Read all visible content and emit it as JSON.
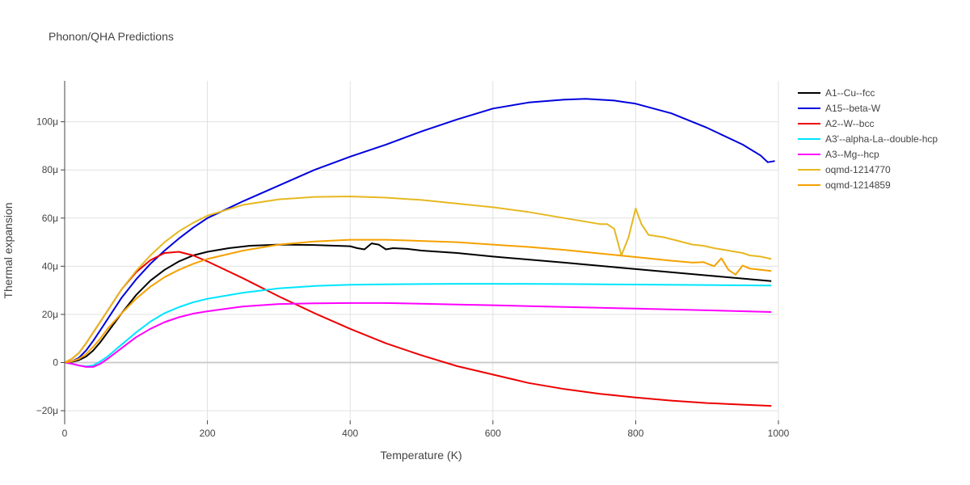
{
  "chart_data": {
    "type": "line",
    "title": "Phonon/QHA Predictions",
    "xlabel": "Temperature (K)",
    "ylabel": "Thermal expansion",
    "xlim": [
      0,
      1000
    ],
    "ylim": [
      -24,
      117
    ],
    "x_ticks": [
      0,
      200,
      400,
      600,
      800,
      1000
    ],
    "x_tick_labels": [
      "0",
      "200",
      "400",
      "600",
      "800",
      "1000"
    ],
    "y_ticks": [
      -20,
      0,
      20,
      40,
      60,
      80,
      100
    ],
    "y_tick_labels": [
      "−20μ",
      "0",
      "20μ",
      "40μ",
      "60μ",
      "80μ",
      "100μ"
    ],
    "grid": true,
    "legend_position": "top-right",
    "series": [
      {
        "name": "A1--Cu--fcc",
        "color": "#000000",
        "x": [
          0,
          10,
          20,
          30,
          40,
          50,
          60,
          80,
          100,
          120,
          140,
          160,
          180,
          200,
          230,
          260,
          300,
          350,
          400,
          410,
          420,
          430,
          440,
          450,
          460,
          480,
          500,
          550,
          600,
          700,
          800,
          900,
          990
        ],
        "y": [
          0,
          0.3,
          1,
          2.5,
          5,
          8.5,
          12.5,
          20.5,
          28,
          34,
          38.5,
          42,
          44.5,
          46,
          47.5,
          48.5,
          49,
          48.8,
          48.3,
          47.5,
          47,
          49.5,
          49,
          47,
          47.5,
          47.2,
          46.5,
          45.5,
          44,
          41.5,
          38.8,
          36.2,
          33.8
        ]
      },
      {
        "name": "A15--beta-W",
        "color": "#0000dd",
        "x": [
          0,
          10,
          20,
          30,
          40,
          50,
          60,
          80,
          100,
          120,
          140,
          160,
          180,
          200,
          250,
          300,
          350,
          400,
          450,
          500,
          550,
          600,
          650,
          700,
          730,
          770,
          800,
          850,
          900,
          950,
          975,
          985,
          995
        ],
        "y": [
          0,
          0.5,
          2,
          5,
          9,
          13.5,
          18,
          27,
          34.5,
          41,
          46.5,
          51.5,
          56,
          60,
          67,
          73.5,
          80,
          85.5,
          90.5,
          96,
          101,
          105.5,
          108,
          109.2,
          109.5,
          108.8,
          107.5,
          103.5,
          97.5,
          90.5,
          86,
          83.2,
          83.7
        ]
      },
      {
        "name": "A2--W--bcc",
        "color": "#ee0000",
        "x": [
          0,
          10,
          20,
          30,
          40,
          50,
          60,
          80,
          100,
          120,
          140,
          160,
          180,
          200,
          250,
          300,
          350,
          400,
          450,
          500,
          550,
          600,
          650,
          700,
          750,
          800,
          850,
          900,
          950,
          990
        ],
        "y": [
          0,
          1.5,
          4,
          8,
          12.5,
          17,
          21.5,
          30.5,
          37.5,
          42.5,
          45.5,
          46,
          44.5,
          42,
          35,
          27.5,
          20.5,
          14,
          8,
          3,
          -1.5,
          -5,
          -8.5,
          -11,
          -13,
          -14.5,
          -15.8,
          -16.8,
          -17.5,
          -18
        ]
      },
      {
        "name": "A3'--alpha-La--double-hcp",
        "color": "#00e5ff",
        "x": [
          0,
          10,
          20,
          30,
          40,
          50,
          60,
          80,
          100,
          120,
          140,
          160,
          180,
          200,
          250,
          300,
          350,
          400,
          450,
          500,
          550,
          600,
          700,
          800,
          900,
          990
        ],
        "y": [
          0,
          -0.5,
          -1.2,
          -1.6,
          -1.2,
          0.5,
          2.5,
          7.5,
          12.5,
          17,
          20.5,
          23,
          25,
          26.5,
          29,
          30.8,
          31.8,
          32.3,
          32.5,
          32.6,
          32.7,
          32.7,
          32.6,
          32.4,
          32.2,
          32
        ]
      },
      {
        "name": "A3--Mg--hcp",
        "color": "#ff00ff",
        "x": [
          0,
          10,
          20,
          30,
          40,
          50,
          60,
          80,
          100,
          120,
          140,
          160,
          180,
          200,
          250,
          300,
          350,
          400,
          450,
          500,
          550,
          600,
          700,
          800,
          900,
          990
        ],
        "y": [
          0,
          -0.5,
          -1.2,
          -1.8,
          -1.8,
          -0.5,
          1.5,
          6,
          10.5,
          14,
          16.8,
          18.8,
          20.3,
          21.3,
          23.3,
          24.3,
          24.6,
          24.7,
          24.7,
          24.4,
          24.1,
          23.8,
          23.1,
          22.4,
          21.7,
          21
        ]
      },
      {
        "name": "oqmd-1214770",
        "color": "#e6b820",
        "x": [
          0,
          10,
          20,
          30,
          40,
          50,
          60,
          80,
          100,
          120,
          140,
          160,
          180,
          200,
          250,
          300,
          350,
          400,
          450,
          500,
          550,
          600,
          650,
          700,
          750,
          760,
          770,
          780,
          790,
          800,
          808,
          818,
          840,
          860,
          880,
          895,
          910,
          920,
          930,
          940,
          950,
          960,
          975,
          990
        ],
        "y": [
          0,
          1.5,
          4,
          8,
          12.5,
          17,
          21.5,
          30.5,
          38,
          44.5,
          50,
          54.5,
          58,
          61,
          65.5,
          67.8,
          68.8,
          69,
          68.5,
          67.5,
          66,
          64.5,
          62.5,
          60,
          57.5,
          57.5,
          55.5,
          44.5,
          52,
          64,
          57.5,
          53,
          52,
          50.5,
          49,
          48.5,
          47.5,
          47,
          46.5,
          46,
          45.5,
          44.5,
          44,
          43
        ]
      },
      {
        "name": "oqmd-1214859",
        "color": "#f5a100",
        "x": [
          0,
          10,
          20,
          30,
          40,
          50,
          60,
          80,
          100,
          120,
          140,
          160,
          180,
          200,
          250,
          300,
          350,
          400,
          450,
          500,
          550,
          600,
          650,
          700,
          750,
          800,
          850,
          880,
          895,
          910,
          920,
          930,
          940,
          950,
          960,
          975,
          990
        ],
        "y": [
          0,
          0.5,
          1.5,
          3.5,
          6.5,
          10,
          14,
          20.5,
          26.5,
          31.5,
          35.5,
          38.5,
          41,
          43,
          46.5,
          49,
          50.3,
          51,
          51,
          50.5,
          50,
          49,
          48,
          46.8,
          45.3,
          43.8,
          42.3,
          41.5,
          41.7,
          40,
          43.3,
          38.5,
          36.5,
          40.3,
          39,
          38.5,
          38
        ]
      }
    ]
  }
}
